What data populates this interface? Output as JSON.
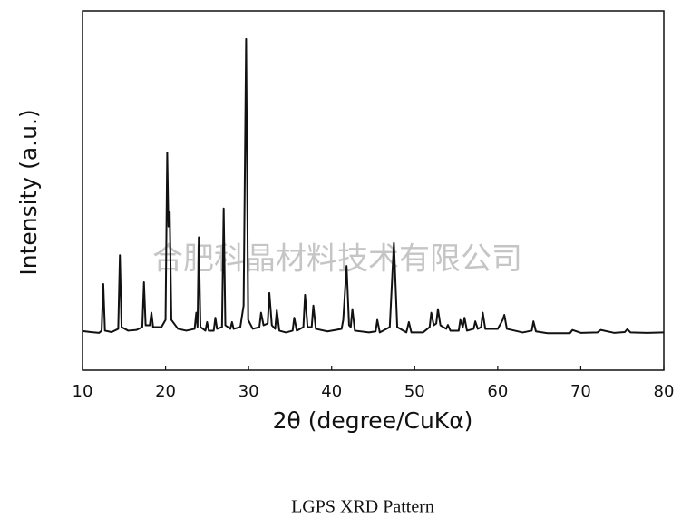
{
  "chart_data": {
    "type": "line",
    "ylabel": "Intensity (a.u.)",
    "xlabel": "2θ (degree/CuKα)",
    "watermark": "合肥科晶材料技术有限公司",
    "caption": "LGPS XRD Pattern",
    "color": "#111111",
    "xlim": [
      10,
      80
    ],
    "xticks": [
      10,
      20,
      30,
      40,
      50,
      60,
      70,
      80
    ],
    "ylim": [
      0,
      100
    ],
    "x": [
      10,
      11,
      12,
      12.3,
      12.5,
      12.7,
      13.5,
      14.3,
      14.5,
      14.7,
      15.5,
      16.5,
      17.2,
      17.4,
      17.6,
      18.1,
      18.3,
      18.5,
      19.5,
      20.0,
      20.2,
      20.35,
      20.5,
      20.7,
      21.5,
      22.5,
      23.5,
      23.7,
      23.85,
      24.0,
      24.2,
      24.8,
      25.0,
      25.2,
      25.8,
      26.0,
      26.2,
      26.8,
      27.0,
      27.2,
      27.8,
      28.0,
      28.2,
      29.0,
      29.4,
      29.7,
      29.95,
      30.5,
      31.3,
      31.5,
      31.8,
      32.3,
      32.5,
      32.8,
      33.2,
      33.4,
      33.7,
      34.5,
      35.3,
      35.5,
      35.8,
      36.6,
      36.8,
      37.1,
      37.6,
      37.8,
      38.1,
      39.5,
      41.2,
      41.4,
      41.8,
      42.1,
      42.3,
      42.5,
      42.8,
      44.5,
      45.3,
      45.5,
      45.8,
      47.0,
      47.5,
      47.9,
      49.0,
      49.3,
      49.6,
      51.0,
      51.8,
      52.0,
      52.3,
      52.6,
      52.8,
      53.1,
      53.8,
      54.0,
      54.3,
      55.3,
      55.5,
      55.8,
      56.0,
      56.3,
      57.1,
      57.3,
      57.6,
      58.0,
      58.2,
      58.5,
      60.0,
      60.6,
      60.8,
      61.1,
      63.0,
      64.1,
      64.3,
      64.6,
      66.0,
      68.7,
      69.0,
      70.0,
      72.0,
      72.4,
      74.0,
      75.3,
      75.6,
      76.0,
      78.0,
      80
    ],
    "values": [
      10.9,
      10.6,
      10.4,
      11,
      24,
      11,
      10.6,
      11.5,
      32,
      12,
      11,
      11.2,
      12,
      24.5,
      12.5,
      12.5,
      16,
      12,
      12,
      14,
      60.6,
      40,
      44,
      14,
      11.5,
      11,
      11.5,
      16,
      12,
      37,
      12,
      11,
      13.4,
      11,
      11,
      14.6,
      11.5,
      12,
      45,
      12.5,
      11.5,
      13.4,
      11.5,
      12,
      18,
      92.2,
      14,
      11.5,
      12,
      16,
      12.5,
      13,
      21.5,
      12.5,
      11.5,
      16.7,
      11,
      10.5,
      11,
      14.6,
      11,
      12,
      21,
      12,
      12,
      18,
      11.5,
      10.8,
      11.5,
      14,
      29,
      12.5,
      12,
      17,
      11,
      10.5,
      10.8,
      14,
      10.5,
      12,
      35.4,
      12,
      10.5,
      13.4,
      10.5,
      10.5,
      12,
      16,
      12.5,
      13,
      17,
      12.5,
      11.5,
      12.6,
      11,
      11,
      14,
      12,
      14.6,
      11,
      11.5,
      13.6,
      11.5,
      12,
      16,
      11.5,
      11.5,
      14,
      15.4,
      11.5,
      10.5,
      11,
      13.6,
      10.8,
      10.3,
      10.3,
      11.2,
      10.4,
      10.5,
      11.2,
      10.4,
      10.6,
      11.4,
      10.5,
      10.4,
      10.5
    ]
  }
}
